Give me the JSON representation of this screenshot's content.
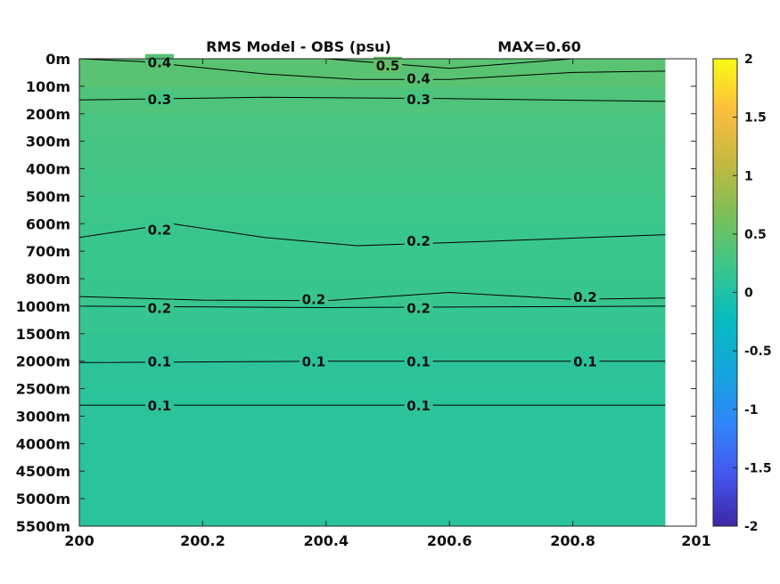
{
  "chart_data": {
    "type": "heatmap",
    "title": "RMS Model - OBS (psu)",
    "annotation": "MAX=0.60",
    "xlabel": "",
    "ylabel": "",
    "xlim": [
      200,
      201
    ],
    "x_ticks": [
      {
        "value": 200,
        "label": "200"
      },
      {
        "value": 200.2,
        "label": "200.2"
      },
      {
        "value": 200.4,
        "label": "200.4"
      },
      {
        "value": 200.6,
        "label": "200.6"
      },
      {
        "value": 200.8,
        "label": "200.8"
      },
      {
        "value": 201,
        "label": "201"
      }
    ],
    "x_data_extent": [
      200,
      200.95
    ],
    "y_levels": [
      "0m",
      "100m",
      "200m",
      "300m",
      "400m",
      "500m",
      "600m",
      "700m",
      "800m",
      "1000m",
      "1500m",
      "2000m",
      "2500m",
      "3000m",
      "4000m",
      "4500m",
      "5000m",
      "5500m"
    ],
    "y_ticks": [
      "0m",
      "100m",
      "200m",
      "300m",
      "400m",
      "500m",
      "600m",
      "700m",
      "800m",
      "1000m",
      "1500m",
      "2000m",
      "2500m",
      "3000m",
      "4000m",
      "4500m",
      "5000m",
      "5500m"
    ],
    "colorbar": {
      "range": [
        -2,
        2
      ],
      "ticks": [
        "-2",
        "-1.5",
        "-1",
        "-0.5",
        "0",
        "0.5",
        "1",
        "1.5",
        "2"
      ],
      "colors": [
        "#3e26a8",
        "#4557ef",
        "#2f86f8",
        "#14a6db",
        "#06bcbf",
        "#3bc68a",
        "#7cbf56",
        "#c4b93f",
        "#fcbd3d",
        "#f9fb15"
      ]
    },
    "field_rms_by_level": [
      0.45,
      0.4,
      0.32,
      0.3,
      0.27,
      0.25,
      0.21,
      0.2,
      0.2,
      0.19,
      0.15,
      0.11,
      0.1,
      0.08,
      0.07,
      0.07,
      0.07,
      0.07
    ],
    "contours": [
      {
        "label": "0.4",
        "points": [
          [
            200,
            0
          ],
          [
            200.1,
            0.1
          ],
          [
            200.3,
            0.55
          ],
          [
            200.45,
            0.75
          ],
          [
            200.6,
            0.75
          ],
          [
            200.8,
            0.5
          ],
          [
            200.95,
            0.45
          ]
        ],
        "label_positions": [
          [
            200.13,
            0.12
          ],
          [
            200.55,
            0.7
          ]
        ]
      },
      {
        "label": "0.5",
        "points": [
          [
            200.4,
            0
          ],
          [
            200.6,
            0.35
          ],
          [
            200.8,
            0
          ]
        ],
        "label_positions": [
          [
            200.5,
            0.22
          ]
        ]
      },
      {
        "label": "0.3",
        "points": [
          [
            200,
            1.5
          ],
          [
            200.3,
            1.4
          ],
          [
            200.6,
            1.45
          ],
          [
            200.95,
            1.55
          ]
        ],
        "label_positions": [
          [
            200.13,
            1.45
          ],
          [
            200.55,
            1.45
          ]
        ]
      },
      {
        "label": "0.2",
        "points": [
          [
            200,
            6.5
          ],
          [
            200.15,
            6.0
          ],
          [
            200.3,
            6.5
          ],
          [
            200.45,
            6.8
          ],
          [
            200.65,
            6.65
          ],
          [
            200.95,
            6.4
          ]
        ],
        "label_positions": [
          [
            200.13,
            6.2
          ],
          [
            200.55,
            6.6
          ]
        ]
      },
      {
        "label": "0.2",
        "points": [
          [
            200,
            8.65
          ],
          [
            200.2,
            8.78
          ],
          [
            200.4,
            8.8
          ],
          [
            200.6,
            8.5
          ],
          [
            200.8,
            8.75
          ],
          [
            200.95,
            8.7
          ]
        ],
        "label_positions": [
          [
            200.38,
            8.72
          ],
          [
            200.82,
            8.65
          ]
        ]
      },
      {
        "label": "0.2",
        "points": [
          [
            200,
            9
          ],
          [
            200.4,
            9.05
          ],
          [
            200.95,
            9.0
          ]
        ],
        "label_positions": [
          [
            200.13,
            9.05
          ],
          [
            200.55,
            9.05
          ]
        ]
      },
      {
        "label": "0.1",
        "points": [
          [
            200,
            11.05
          ],
          [
            200.4,
            11.0
          ],
          [
            200.95,
            11.0
          ]
        ],
        "label_positions": [
          [
            200.13,
            11.0
          ],
          [
            200.38,
            11.0
          ],
          [
            200.55,
            11.0
          ],
          [
            200.82,
            11.0
          ]
        ]
      },
      {
        "label": "0.1",
        "points": [
          [
            200,
            12.6
          ],
          [
            200.95,
            12.6
          ]
        ],
        "label_positions": [
          [
            200.13,
            12.6
          ],
          [
            200.55,
            12.6
          ]
        ]
      }
    ]
  }
}
